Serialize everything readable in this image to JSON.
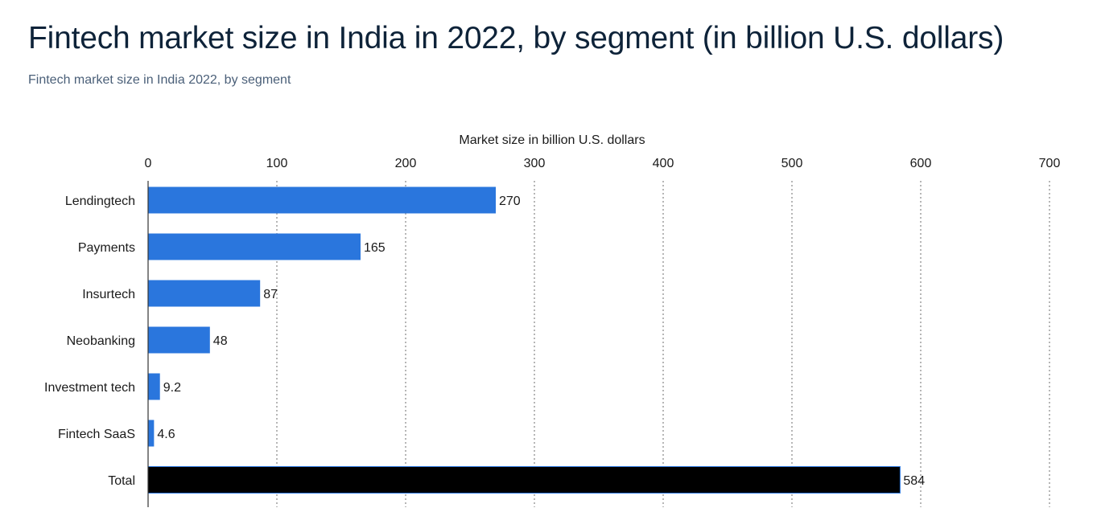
{
  "header": {
    "title": "Fintech market size in India in 2022, by segment (in billion U.S. dollars)",
    "subtitle": "Fintech market size in India 2022, by segment"
  },
  "chart_data": {
    "type": "bar",
    "orientation": "horizontal",
    "xlabel": "Market size in billion U.S. dollars",
    "xlim": [
      0,
      700
    ],
    "ticks": [
      0,
      100,
      200,
      300,
      400,
      500,
      600,
      700
    ],
    "grid": true,
    "categories": [
      "Lendingtech",
      "Payments",
      "Insurtech",
      "Neobanking",
      "Investment tech",
      "Fintech SaaS",
      "Total"
    ],
    "values": [
      270,
      165,
      87,
      48,
      9.2,
      4.6,
      584
    ],
    "value_labels": [
      "270",
      "165",
      "87",
      "48",
      "9.2",
      "4.6",
      "584"
    ],
    "colors": {
      "bar": "#2a76dd",
      "total_bar": "#000000",
      "total_border": "#2a76dd"
    }
  }
}
